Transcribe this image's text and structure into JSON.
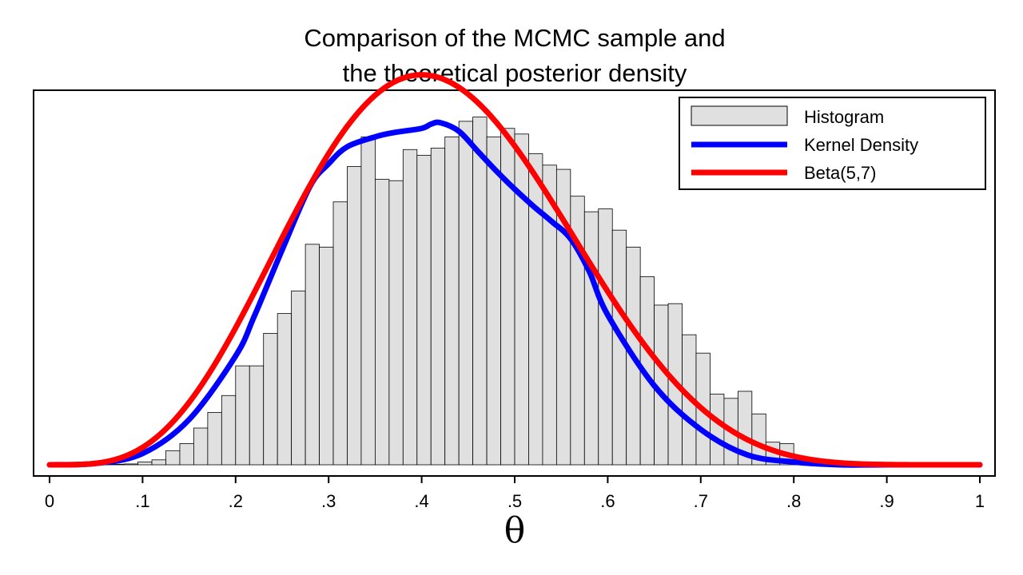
{
  "chart_data": {
    "type": "bar",
    "title": [
      "Comparison of the MCMC sample and",
      "the theoretical posterior density"
    ],
    "xlabel": "θ",
    "ylabel": "",
    "xlim": [
      0,
      1
    ],
    "ylim": [
      0,
      2.65
    ],
    "x_ticks": [
      0,
      0.1,
      0.2,
      0.3,
      0.4,
      0.5,
      0.6,
      0.7,
      0.8,
      0.9,
      1
    ],
    "x_tick_labels": [
      "0",
      ".1",
      ".2",
      ".3",
      ".4",
      ".5",
      ".6",
      ".7",
      ".8",
      ".9",
      "1"
    ],
    "y_axis_shown": false,
    "grid": false,
    "legend_position": "top-right",
    "histogram": {
      "name": "Histogram",
      "bin_start": 0.05,
      "bin_width": 0.015,
      "values": [
        0.004,
        0.004,
        0.006,
        0.02,
        0.035,
        0.1,
        0.15,
        0.26,
        0.37,
        0.49,
        0.7,
        0.7,
        0.93,
        1.07,
        1.23,
        1.56,
        1.54,
        1.86,
        2.11,
        2.32,
        2.02,
        2.01,
        2.23,
        2.19,
        2.24,
        2.32,
        2.43,
        2.46,
        2.32,
        2.38,
        2.34,
        2.2,
        2.12,
        2.09,
        1.9,
        1.79,
        1.81,
        1.66,
        1.54,
        1.33,
        1.13,
        1.14,
        0.92,
        0.79,
        0.5,
        0.47,
        0.52,
        0.36,
        0.16,
        0.15,
        0.05,
        0.012,
        0.006,
        0.004
      ]
    },
    "series": [
      {
        "name": "Kernel Density",
        "x": [
          0,
          0.05,
          0.1,
          0.15,
          0.2,
          0.22,
          0.25,
          0.28,
          0.3,
          0.32,
          0.35,
          0.37,
          0.4,
          0.41,
          0.42,
          0.44,
          0.46,
          0.48,
          0.5,
          0.52,
          0.54,
          0.56,
          0.58,
          0.6,
          0.65,
          0.7,
          0.75,
          0.8,
          0.85,
          0.9,
          1
        ],
        "values": [
          0.0,
          0.01,
          0.08,
          0.32,
          0.77,
          1.05,
          1.52,
          1.97,
          2.13,
          2.25,
          2.32,
          2.35,
          2.38,
          2.41,
          2.42,
          2.36,
          2.22,
          2.08,
          1.95,
          1.83,
          1.72,
          1.6,
          1.37,
          1.06,
          0.56,
          0.25,
          0.07,
          0.02,
          0.0,
          0.0,
          0.0
        ],
        "color": "#0000ff"
      },
      {
        "name": "Beta(5,7)",
        "formula": "pdf Beta(5,7)",
        "color": "#ff0000"
      }
    ]
  },
  "legend": {
    "items": [
      {
        "label": "Histogram",
        "type": "patch",
        "fill": "#e0e0e0",
        "stroke": "#000000"
      },
      {
        "label": "Kernel Density",
        "type": "line",
        "color": "#0000ff"
      },
      {
        "label": "Beta(5,7)",
        "type": "line",
        "color": "#ff0000"
      }
    ]
  }
}
